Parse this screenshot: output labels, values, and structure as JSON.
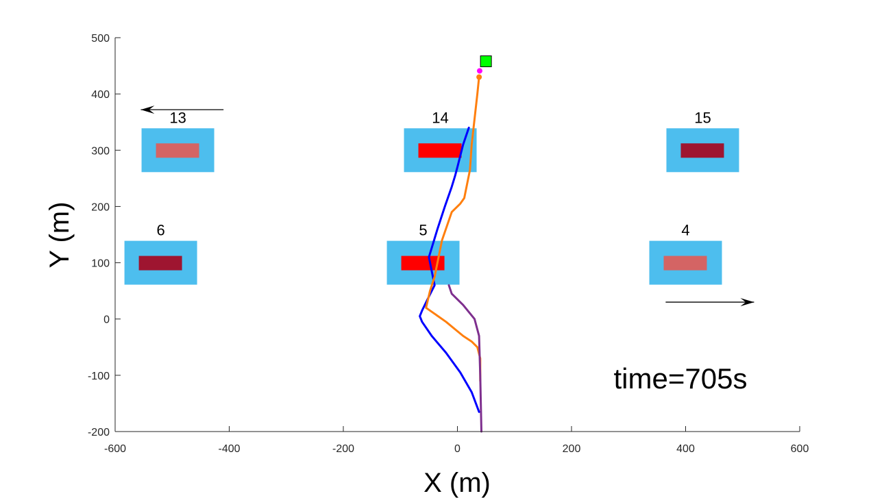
{
  "chart_data": {
    "type": "line",
    "xlabel": "X (m)",
    "ylabel": "Y (m)",
    "xlim": [
      -600,
      600
    ],
    "ylim": [
      -200,
      500
    ],
    "xticks": [
      -600,
      -400,
      -200,
      0,
      200,
      400,
      600
    ],
    "yticks": [
      -200,
      -100,
      0,
      100,
      200,
      300,
      400,
      500
    ],
    "grid": false,
    "annotation": "time=705s",
    "blocks": [
      {
        "label": "13",
        "x": -490,
        "y": 300,
        "inner_color": "#d46464"
      },
      {
        "label": "14",
        "x": -30,
        "y": 300,
        "inner_color": "#ff0000"
      },
      {
        "label": "15",
        "x": 430,
        "y": 300,
        "inner_color": "#9e1530"
      },
      {
        "label": "6",
        "x": -520,
        "y": 100,
        "inner_color": "#9e1530"
      },
      {
        "label": "5",
        "x": -60,
        "y": 100,
        "inner_color": "#ff0000"
      },
      {
        "label": "4",
        "x": 400,
        "y": 100,
        "inner_color": "#d46464"
      }
    ],
    "block_outer_color": "#4dbeee",
    "arrows": [
      {
        "from": [
          -410,
          372
        ],
        "to": [
          -555,
          372
        ]
      },
      {
        "from": [
          365,
          30
        ],
        "to": [
          520,
          30
        ]
      }
    ],
    "target": {
      "x": 50,
      "y": 458,
      "color": "#00ff00"
    },
    "series": [
      {
        "color": "#0000ff",
        "x": [
          38,
          25,
          5,
          -20,
          -45,
          -62,
          -66,
          -62,
          -50,
          -40,
          -50,
          -35,
          -22,
          -10,
          -4,
          0,
          10,
          20
        ],
        "y": [
          -165,
          -130,
          -95,
          -60,
          -30,
          -5,
          5,
          15,
          40,
          60,
          110,
          160,
          200,
          235,
          255,
          270,
          310,
          340
        ]
      },
      {
        "color": "#ff7f0e",
        "x": [
          40,
          40,
          35,
          25,
          10,
          -20,
          -55,
          -48,
          -40,
          -27,
          -10,
          5,
          12,
          22,
          25,
          35,
          38
        ],
        "y": [
          -110,
          -70,
          -50,
          -40,
          -30,
          -5,
          20,
          50,
          75,
          140,
          190,
          205,
          215,
          265,
          310,
          400,
          430
        ]
      },
      {
        "color": "#7e2f8e",
        "x": [
          42,
          40,
          38,
          30,
          10,
          -10,
          -15
        ],
        "y": [
          -200,
          -100,
          -30,
          0,
          25,
          45,
          60
        ]
      }
    ],
    "markers": [
      {
        "x": 38,
        "y": 430,
        "color": "#ff7f0e"
      },
      {
        "x": 39,
        "y": 441,
        "color": "#ff00ff"
      }
    ]
  }
}
